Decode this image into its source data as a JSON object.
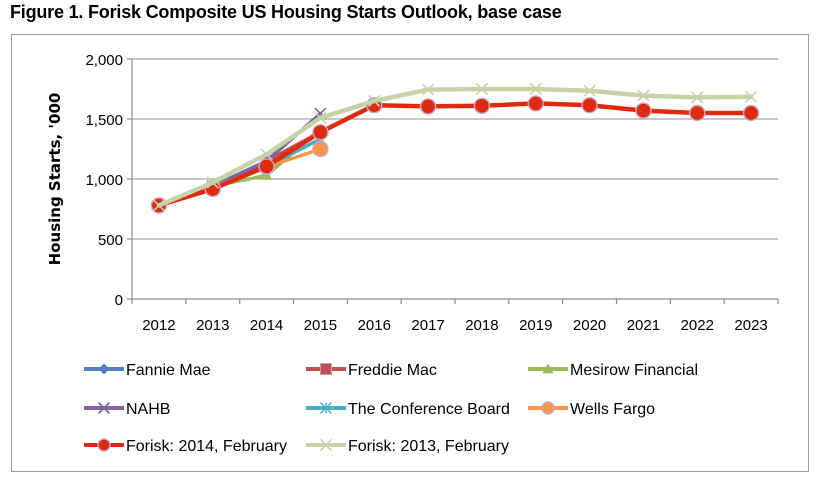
{
  "figure": {
    "title": "Figure 1. Forisk Composite US Housing Starts Outlook, base case"
  },
  "chart_data": {
    "type": "line",
    "title": "Figure 1. Forisk Composite US Housing Starts Outlook, base case",
    "xlabel": "",
    "ylabel": "Housing Starts, '000",
    "categories": [
      "2012",
      "2013",
      "2014",
      "2015",
      "2016",
      "2017",
      "2018",
      "2019",
      "2020",
      "2021",
      "2022",
      "2023"
    ],
    "ylim": [
      0,
      2000
    ],
    "yticks": [
      0,
      500,
      1000,
      1500,
      2000
    ],
    "ytick_labels": [
      "0",
      "500",
      "1,000",
      "1,500",
      "2,000"
    ],
    "grid": true,
    "legend_position": "bottom",
    "series": [
      {
        "name": "Fannie Mae",
        "color": "#4f81bd",
        "marker": "diamond",
        "values": [
          780,
          930,
          1120,
          1400,
          null,
          null,
          null,
          null,
          null,
          null,
          null,
          null
        ]
      },
      {
        "name": "Freddie Mac",
        "color": "#c0504d",
        "marker": "square",
        "values": [
          780,
          930,
          1150,
          1390,
          null,
          null,
          null,
          null,
          null,
          null,
          null,
          null
        ]
      },
      {
        "name": "Mesirow Financial",
        "color": "#9bbb59",
        "marker": "triangle",
        "values": [
          780,
          940,
          1030,
          1420,
          null,
          null,
          null,
          null,
          null,
          null,
          null,
          null
        ]
      },
      {
        "name": "NAHB",
        "color": "#8064a2",
        "marker": "x",
        "values": [
          780,
          940,
          1150,
          1545,
          null,
          null,
          null,
          null,
          null,
          null,
          null,
          null
        ]
      },
      {
        "name": "The Conference Board",
        "color": "#4bacc6",
        "marker": "star",
        "values": [
          780,
          930,
          1100,
          1335,
          null,
          null,
          null,
          null,
          null,
          null,
          null,
          null
        ]
      },
      {
        "name": "Wells Fargo",
        "color": "#f79646",
        "marker": "circle",
        "values": [
          780,
          930,
          1100,
          1250,
          null,
          null,
          null,
          null,
          null,
          null,
          null,
          null
        ]
      },
      {
        "name": "Forisk: 2014, February",
        "color": "#e02a10",
        "marker": "circle",
        "values": [
          780,
          917,
          1105,
          1390,
          1615,
          1605,
          1610,
          1630,
          1615,
          1570,
          1550,
          1550
        ]
      },
      {
        "name": "Forisk: 2013, February",
        "color": "#c4d4a8",
        "marker": "x",
        "values": [
          780,
          970,
          1205,
          1510,
          1650,
          1745,
          1750,
          1750,
          1735,
          1695,
          1680,
          1685
        ]
      }
    ]
  }
}
